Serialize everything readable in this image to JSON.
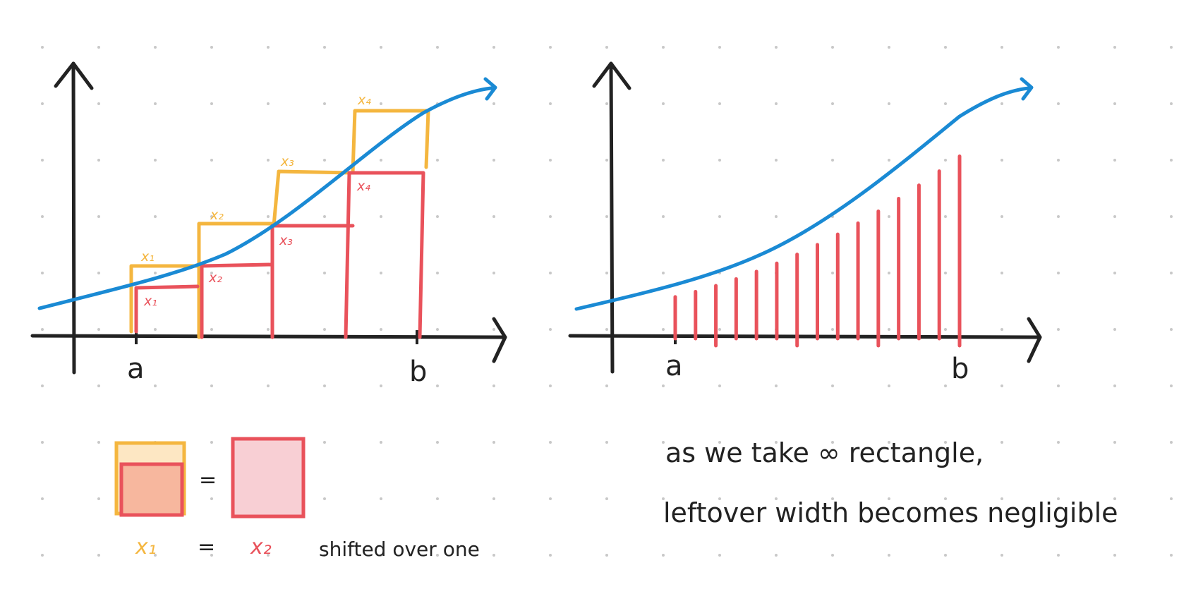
{
  "colors": {
    "curve": "#1a8ad4",
    "axis": "#222222",
    "left_sum": "#f4b63f",
    "right_sum": "#e9525b",
    "legend_fill_yellow": "#fde7c3",
    "legend_fill_orange": "#f7b79e",
    "legend_fill_pink": "#f8cfd4",
    "dot_grid": "#c8c8c8"
  },
  "left_panel": {
    "label_a": "a",
    "label_b": "b",
    "yellow_labels": [
      "x₁",
      "x₂",
      "x₃",
      "x₄"
    ],
    "red_labels": [
      "x₁",
      "x₂",
      "x₃",
      "x₄"
    ]
  },
  "right_panel": {
    "label_a": "a",
    "label_b": "b",
    "strip_count": 15
  },
  "legend": {
    "equals_symbol": "=",
    "left_var": "x₁",
    "right_var": "x₂",
    "note": "shifted over one"
  },
  "note": {
    "line1": "as we take ∞ rectangle,",
    "line2": "leftover width becomes negligible"
  }
}
